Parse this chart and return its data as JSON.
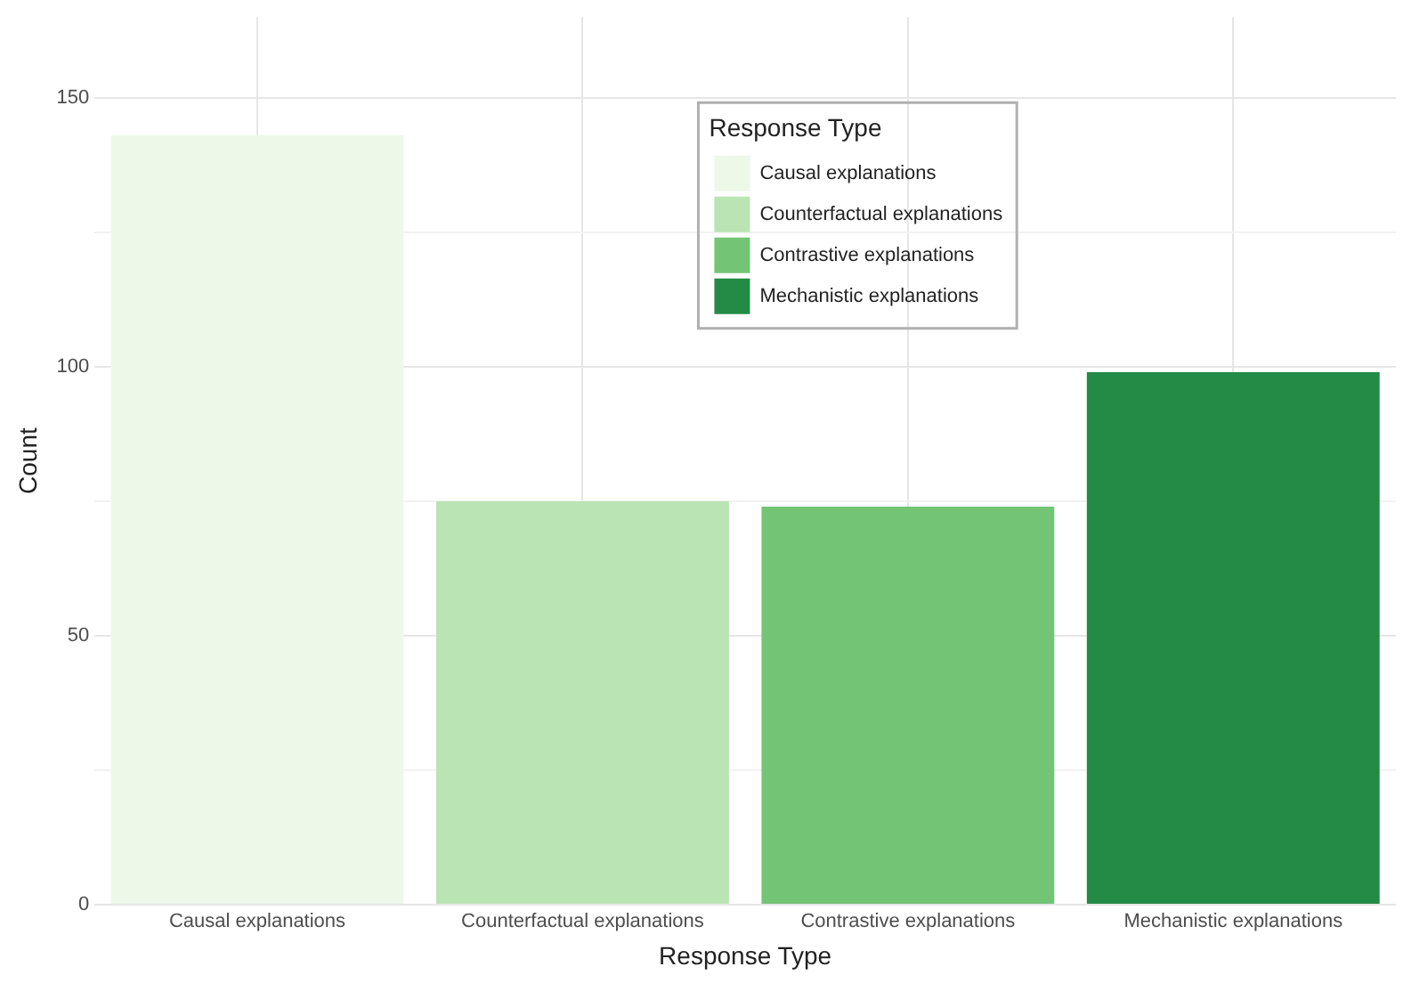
{
  "chart_data": {
    "type": "bar",
    "xlabel": "Response Type",
    "ylabel": "Count",
    "legend_title": "Response Type",
    "categories": [
      "Causal explanations",
      "Counterfactual explanations",
      "Contrastive explanations",
      "Mechanistic explanations"
    ],
    "series": [
      {
        "name": "Causal explanations",
        "color": "#edf8e9",
        "values": [
          143,
          null,
          null,
          null
        ]
      },
      {
        "name": "Counterfactual explanations",
        "color": "#bae4b3",
        "values": [
          null,
          75,
          null,
          null
        ]
      },
      {
        "name": "Contrastive explanations",
        "color": "#74c476",
        "values": [
          null,
          null,
          74,
          null
        ]
      },
      {
        "name": "Mechanistic explanations",
        "color": "#238b45",
        "values": [
          null,
          null,
          null,
          99
        ]
      }
    ],
    "ylim": [
      0,
      165
    ],
    "yticks": [
      0,
      {
        "value": 25,
        "label": null
      },
      50,
      {
        "value": 75,
        "label": null
      },
      100,
      {
        "value": 125,
        "label": null
      },
      150
    ],
    "grid": true,
    "legend": "top"
  }
}
